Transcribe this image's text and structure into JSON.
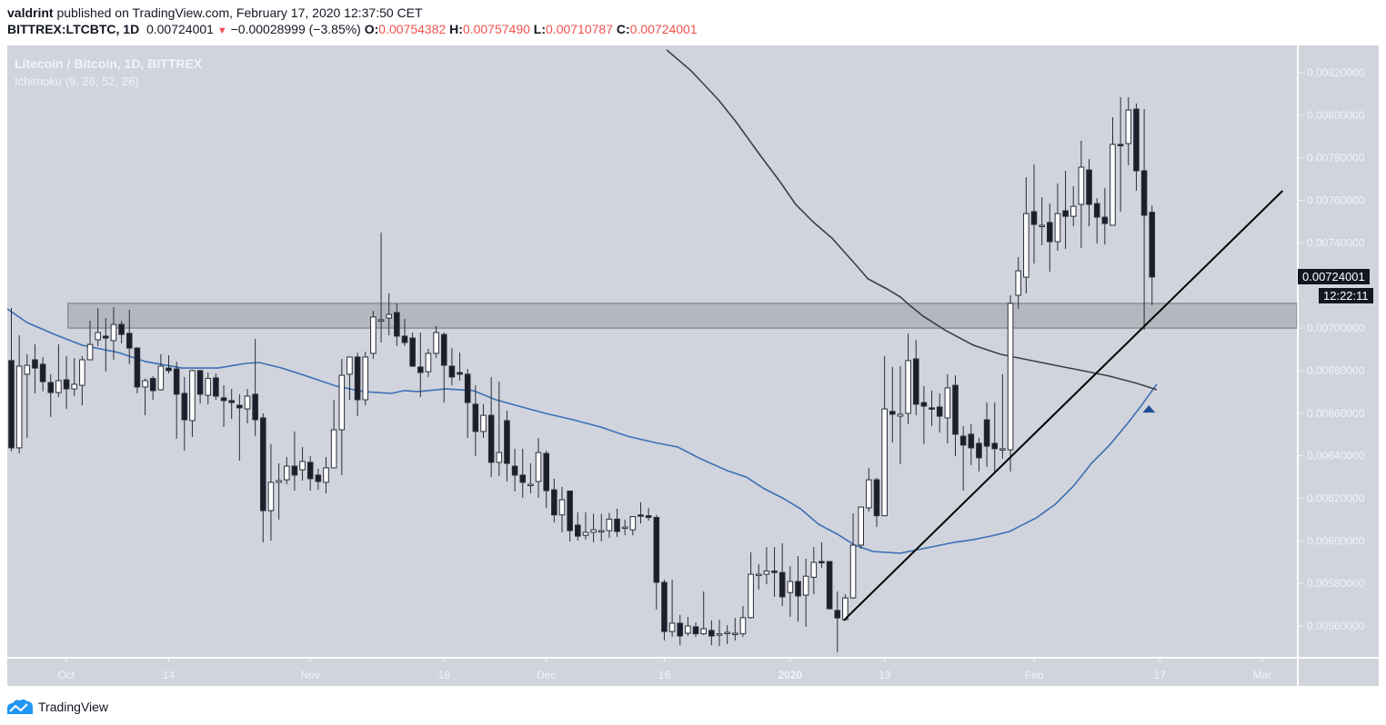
{
  "header": {
    "author": "valdrint",
    "published_text": "published on TradingView.com, February 17, 2020 12:37:50 CET",
    "symbol": "BITTREX:LTCBTC, 1D",
    "last": "0.00724001",
    "change": "−0.00028999 (−3.85%)",
    "open_label": "O:",
    "open": "0.00754382",
    "high_label": "H:",
    "high": "0.00757490",
    "low_label": "L:",
    "low": "0.00710787",
    "close_label": "C:",
    "close": "0.00724001"
  },
  "legend": {
    "title": "Litecoin / Bitcoin, 1D, BITTREX",
    "indicator": "Ichimoku (9, 26, 52, 26)"
  },
  "price_label": {
    "value": "0.00724001",
    "countdown": "12:22:11"
  },
  "brand": {
    "name": "TradingView",
    "icon": "tradingview-logo-icon"
  },
  "colors": {
    "pane_bg": "#d1d4dc",
    "up_body": "#ffffff",
    "down_body": "#1c1f2b",
    "wick": "#2a2e39",
    "blue_line": "#3b6fb6",
    "dark_line": "#3d3f46",
    "trend_line": "#000000",
    "zone_fill": "#b5b7bf",
    "zone_border": "#8d8f96",
    "axis_text": "#f0f3fa",
    "marker": "#1f4e96"
  },
  "chart_data": {
    "type": "candlestick",
    "title": "Litecoin / Bitcoin, 1D, BITTREX",
    "xlabel": "",
    "ylabel": "",
    "ylim": [
      0.0054,
      0.0083
    ],
    "y_ticks": [
      "0.00820000",
      "0.00800000",
      "0.00780000",
      "0.00760000",
      "0.00740000",
      "0.00700000",
      "0.00680000",
      "0.00660000",
      "0.00640000",
      "0.00620000",
      "0.00600000",
      "0.00580000",
      "0.00560000"
    ],
    "x_ticks": [
      {
        "label": "Oct",
        "index": 7
      },
      {
        "label": "14",
        "index": 20
      },
      {
        "label": "Nov",
        "index": 38
      },
      {
        "label": "18",
        "index": 55
      },
      {
        "label": "Dec",
        "index": 68
      },
      {
        "label": "16",
        "index": 83
      },
      {
        "label": "2020",
        "index": 99
      },
      {
        "label": "13",
        "index": 111
      },
      {
        "label": "Feb",
        "index": 130
      },
      {
        "label": "17",
        "index": 146
      },
      {
        "label": "Mar",
        "index": 159
      }
    ],
    "grid": false,
    "price_scale_milli": true,
    "candles_ohlc_mBTC": [
      [
        6.847,
        7.094,
        6.42,
        6.437
      ],
      [
        6.437,
        6.966,
        6.411,
        6.821
      ],
      [
        6.783,
        6.877,
        6.484,
        6.825
      ],
      [
        6.851,
        6.923,
        6.693,
        6.812
      ],
      [
        6.83,
        6.864,
        6.702,
        6.748
      ],
      [
        6.744,
        6.783,
        6.582,
        6.697
      ],
      [
        6.697,
        6.923,
        6.676,
        6.753
      ],
      [
        6.757,
        6.868,
        6.62,
        6.714
      ],
      [
        6.714,
        6.859,
        6.68,
        6.736
      ],
      [
        6.731,
        6.868,
        6.637,
        6.851
      ],
      [
        6.851,
        7.034,
        6.855,
        6.923
      ],
      [
        6.945,
        7.094,
        6.915,
        6.979
      ],
      [
        6.962,
        7.047,
        6.795,
        6.953
      ],
      [
        6.941,
        7.099,
        6.851,
        7.017
      ],
      [
        7.017,
        7.034,
        6.928,
        6.97
      ],
      [
        6.975,
        7.086,
        6.83,
        6.906
      ],
      [
        6.906,
        6.911,
        6.693,
        6.723
      ],
      [
        6.723,
        6.763,
        6.59,
        6.753
      ],
      [
        6.763,
        6.774,
        6.663,
        6.706
      ],
      [
        6.71,
        6.877,
        6.706,
        6.821
      ],
      [
        6.812,
        6.872,
        6.787,
        6.8
      ],
      [
        6.808,
        6.842,
        6.48,
        6.689
      ],
      [
        6.693,
        6.77,
        6.424,
        6.569
      ],
      [
        6.565,
        6.804,
        6.488,
        6.8
      ],
      [
        6.8,
        6.791,
        6.646,
        6.689
      ],
      [
        6.684,
        6.791,
        6.642,
        6.763
      ],
      [
        6.766,
        6.787,
        6.663,
        6.68
      ],
      [
        6.672,
        6.731,
        6.535,
        6.659
      ],
      [
        6.659,
        6.714,
        6.573,
        6.65
      ],
      [
        6.637,
        6.689,
        6.377,
        6.625
      ],
      [
        6.62,
        6.714,
        6.552,
        6.68
      ],
      [
        6.689,
        6.949,
        6.492,
        6.569
      ],
      [
        6.578,
        6.599,
        5.993,
        6.142
      ],
      [
        6.142,
        6.454,
        6.001,
        6.275
      ],
      [
        6.275,
        6.364,
        6.1,
        6.283
      ],
      [
        6.287,
        6.394,
        6.266,
        6.351
      ],
      [
        6.351,
        6.514,
        6.236,
        6.309
      ],
      [
        6.334,
        6.441,
        6.283,
        6.373
      ],
      [
        6.369,
        6.398,
        6.236,
        6.292
      ],
      [
        6.309,
        6.339,
        6.24,
        6.279
      ],
      [
        6.275,
        6.394,
        6.223,
        6.343
      ],
      [
        6.343,
        6.663,
        6.347,
        6.522
      ],
      [
        6.522,
        6.855,
        6.309,
        6.778
      ],
      [
        6.783,
        6.859,
        6.663,
        6.864
      ],
      [
        6.864,
        6.885,
        6.586,
        6.663
      ],
      [
        6.663,
        6.889,
        6.637,
        6.864
      ],
      [
        6.881,
        7.081,
        6.855,
        7.052
      ],
      [
        7.039,
        7.449,
        6.932,
        7.039
      ],
      [
        7.047,
        7.163,
        6.966,
        7.064
      ],
      [
        7.073,
        7.116,
        6.915,
        6.962
      ],
      [
        6.962,
        7.043,
        6.915,
        6.932
      ],
      [
        6.953,
        6.979,
        6.817,
        6.821
      ],
      [
        6.817,
        6.979,
        6.676,
        6.791
      ],
      [
        6.795,
        6.902,
        6.77,
        6.881
      ],
      [
        6.881,
        7.009,
        6.859,
        6.979
      ],
      [
        6.97,
        6.979,
        6.65,
        6.825
      ],
      [
        6.821,
        6.906,
        6.731,
        6.77
      ],
      [
        6.791,
        6.885,
        6.753,
        6.783
      ],
      [
        6.783,
        6.808,
        6.484,
        6.65
      ],
      [
        6.642,
        6.731,
        6.398,
        6.514
      ],
      [
        6.514,
        6.642,
        6.484,
        6.59
      ],
      [
        6.59,
        6.77,
        6.3,
        6.369
      ],
      [
        6.369,
        6.748,
        6.304,
        6.415
      ],
      [
        6.565,
        6.612,
        6.279,
        6.364
      ],
      [
        6.351,
        6.433,
        6.232,
        6.309
      ],
      [
        6.309,
        6.433,
        6.202,
        6.275
      ],
      [
        6.266,
        6.364,
        6.223,
        6.266
      ],
      [
        6.279,
        6.484,
        6.202,
        6.415
      ],
      [
        6.411,
        6.424,
        6.155,
        6.236
      ],
      [
        6.24,
        6.292,
        6.087,
        6.122
      ],
      [
        6.122,
        6.253,
        6.04,
        6.193
      ],
      [
        6.234,
        6.234,
        5.997,
        6.048
      ],
      [
        6.074,
        6.134,
        6.001,
        6.022
      ],
      [
        6.026,
        6.134,
        6.006,
        6.04
      ],
      [
        6.04,
        6.127,
        5.993,
        6.052
      ],
      [
        6.048,
        6.127,
        5.997,
        6.048
      ],
      [
        6.048,
        6.131,
        6.014,
        6.102
      ],
      [
        6.102,
        6.151,
        6.018,
        6.044
      ],
      [
        6.065,
        6.1,
        6.026,
        6.065
      ],
      [
        6.052,
        6.11,
        6.026,
        6.114
      ],
      [
        6.122,
        6.181,
        6.082,
        6.118
      ],
      [
        6.118,
        6.155,
        6.095,
        6.11
      ],
      [
        6.11,
        6.122,
        5.677,
        5.805
      ],
      [
        5.805,
        5.818,
        5.532,
        5.574
      ],
      [
        5.574,
        5.818,
        5.549,
        5.613
      ],
      [
        5.613,
        5.651,
        5.51,
        5.553
      ],
      [
        5.566,
        5.643,
        5.553,
        5.6
      ],
      [
        5.596,
        5.617,
        5.549,
        5.563
      ],
      [
        5.563,
        5.762,
        5.557,
        5.587
      ],
      [
        5.579,
        5.626,
        5.51,
        5.553
      ],
      [
        5.563,
        5.63,
        5.506,
        5.563
      ],
      [
        5.566,
        5.604,
        5.515,
        5.57
      ],
      [
        5.566,
        5.638,
        5.532,
        5.566
      ],
      [
        5.563,
        5.694,
        5.549,
        5.639
      ],
      [
        5.639,
        5.946,
        5.635,
        5.843
      ],
      [
        5.843,
        5.89,
        5.771,
        5.843
      ],
      [
        5.843,
        5.971,
        5.796,
        5.858
      ],
      [
        5.858,
        5.971,
        5.737,
        5.851
      ],
      [
        5.851,
        5.989,
        5.694,
        5.737
      ],
      [
        5.757,
        5.882,
        5.643,
        5.809
      ],
      [
        5.809,
        5.929,
        5.621,
        5.741
      ],
      [
        5.745,
        5.916,
        5.596,
        5.834
      ],
      [
        5.829,
        5.971,
        5.749,
        5.899
      ],
      [
        5.903,
        5.993,
        5.873,
        5.899
      ],
      [
        5.903,
        5.903,
        5.677,
        5.681
      ],
      [
        5.673,
        5.762,
        5.476,
        5.638
      ],
      [
        5.63,
        5.749,
        5.626,
        5.732
      ],
      [
        5.732,
        6.129,
        5.728,
        5.98
      ],
      [
        5.98,
        6.138,
        5.963,
        6.159
      ],
      [
        6.155,
        6.343,
        6.138,
        6.287
      ],
      [
        6.287,
        6.296,
        6.065,
        6.118
      ],
      [
        6.118,
        6.868,
        6.122,
        6.62
      ],
      [
        6.608,
        6.817,
        6.462,
        6.595
      ],
      [
        6.586,
        6.821,
        6.36,
        6.595
      ],
      [
        6.599,
        6.975,
        6.548,
        6.847
      ],
      [
        6.855,
        6.945,
        6.59,
        6.642
      ],
      [
        6.65,
        6.727,
        6.454,
        6.633
      ],
      [
        6.625,
        6.706,
        6.539,
        6.62
      ],
      [
        6.629,
        6.693,
        6.509,
        6.586
      ],
      [
        6.578,
        6.783,
        6.458,
        6.719
      ],
      [
        6.731,
        6.778,
        6.398,
        6.501
      ],
      [
        6.492,
        6.539,
        6.236,
        6.45
      ],
      [
        6.501,
        6.548,
        6.356,
        6.437
      ],
      [
        6.458,
        6.484,
        6.326,
        6.39
      ],
      [
        6.569,
        6.65,
        6.347,
        6.445
      ],
      [
        6.458,
        6.65,
        6.322,
        6.433
      ],
      [
        6.433,
        6.783,
        6.386,
        6.433
      ],
      [
        6.428,
        7.154,
        6.326,
        7.116
      ],
      [
        7.154,
        7.333,
        7.09,
        7.269
      ],
      [
        7.239,
        7.709,
        7.163,
        7.538
      ],
      [
        7.547,
        7.769,
        7.303,
        7.487
      ],
      [
        7.483,
        7.615,
        7.389,
        7.483
      ],
      [
        7.496,
        7.585,
        7.265,
        7.406
      ],
      [
        7.406,
        7.679,
        7.363,
        7.538
      ],
      [
        7.551,
        7.739,
        7.372,
        7.525
      ],
      [
        7.525,
        7.666,
        7.478,
        7.572
      ],
      [
        7.581,
        7.88,
        7.376,
        7.756
      ],
      [
        7.743,
        7.794,
        7.478,
        7.581
      ],
      [
        7.585,
        7.611,
        7.397,
        7.521
      ],
      [
        7.521,
        7.658,
        7.393,
        7.491
      ],
      [
        7.483,
        7.991,
        7.538,
        7.863
      ],
      [
        7.863,
        8.085,
        7.547,
        7.859
      ],
      [
        7.867,
        8.085,
        7.765,
        8.025
      ],
      [
        8.029,
        8.055,
        7.645,
        7.739
      ],
      [
        7.739,
        8.029,
        6.992,
        7.53
      ],
      [
        7.544,
        7.575,
        7.108,
        7.24
      ]
    ],
    "series": [
      {
        "name": "Ichimoku leading line (blue)",
        "points_index_mBTC": [
          [
            -0.5,
            7.09
          ],
          [
            2.0,
            7.026
          ],
          [
            5.5,
            6.97
          ],
          [
            9.0,
            6.919
          ],
          [
            13.6,
            6.885
          ],
          [
            17.1,
            6.842
          ],
          [
            21.7,
            6.812
          ],
          [
            26.3,
            6.812
          ],
          [
            29.8,
            6.834
          ],
          [
            31.5,
            6.838
          ],
          [
            34.4,
            6.812
          ],
          [
            37.9,
            6.77
          ],
          [
            41.3,
            6.727
          ],
          [
            44.8,
            6.701
          ],
          [
            48.3,
            6.693
          ],
          [
            50.0,
            6.706
          ],
          [
            51.7,
            6.701
          ],
          [
            55.2,
            6.714
          ],
          [
            58.7,
            6.706
          ],
          [
            61.6,
            6.663
          ],
          [
            64.5,
            6.633
          ],
          [
            67.9,
            6.599
          ],
          [
            71.4,
            6.569
          ],
          [
            74.9,
            6.535
          ],
          [
            78.3,
            6.492
          ],
          [
            81.8,
            6.462
          ],
          [
            84.7,
            6.441
          ],
          [
            87.6,
            6.386
          ],
          [
            91.0,
            6.33
          ],
          [
            93.4,
            6.3
          ],
          [
            95.7,
            6.245
          ],
          [
            98.0,
            6.202
          ],
          [
            100.3,
            6.151
          ],
          [
            102.6,
            6.078
          ],
          [
            105.0,
            6.031
          ],
          [
            107.2,
            5.98
          ],
          [
            109.5,
            5.95
          ],
          [
            113.0,
            5.942
          ],
          [
            115.3,
            5.959
          ],
          [
            117.6,
            5.976
          ],
          [
            119.9,
            5.993
          ],
          [
            122.3,
            6.006
          ],
          [
            124.6,
            6.023
          ],
          [
            126.9,
            6.044
          ],
          [
            128.0,
            6.065
          ],
          [
            130.3,
            6.108
          ],
          [
            132.7,
            6.172
          ],
          [
            135.0,
            6.257
          ],
          [
            137.3,
            6.364
          ],
          [
            139.6,
            6.45
          ],
          [
            141.9,
            6.552
          ],
          [
            143.6,
            6.633
          ],
          [
            145.6,
            6.736
          ]
        ]
      },
      {
        "name": "Ichimoku leading line (dark)",
        "points_index_mBTC": [
          [
            83.3,
            8.307
          ],
          [
            86.4,
            8.209
          ],
          [
            89.9,
            8.072
          ],
          [
            92.2,
            7.965
          ],
          [
            95.1,
            7.816
          ],
          [
            97.7,
            7.688
          ],
          [
            99.7,
            7.581
          ],
          [
            102.0,
            7.496
          ],
          [
            104.3,
            7.423
          ],
          [
            107.2,
            7.303
          ],
          [
            108.9,
            7.231
          ],
          [
            111.3,
            7.184
          ],
          [
            113.0,
            7.146
          ],
          [
            114.2,
            7.107
          ],
          [
            115.9,
            7.056
          ],
          [
            118.8,
            6.988
          ],
          [
            122.3,
            6.919
          ],
          [
            125.7,
            6.877
          ],
          [
            129.2,
            6.851
          ],
          [
            132.7,
            6.825
          ],
          [
            136.1,
            6.8
          ],
          [
            139.6,
            6.774
          ],
          [
            143.1,
            6.74
          ],
          [
            145.6,
            6.71
          ]
        ]
      }
    ],
    "annotations": {
      "trend_line": {
        "from": [
          105.8,
          5.626
        ],
        "to": [
          161.6,
          7.645
        ]
      },
      "horizontal_zone": {
        "from_index": 7.2,
        "top": 7.116,
        "bottom": 7.0
      },
      "triangle_marker": {
        "index": 144.6,
        "value": 6.62,
        "direction": "up"
      }
    }
  }
}
